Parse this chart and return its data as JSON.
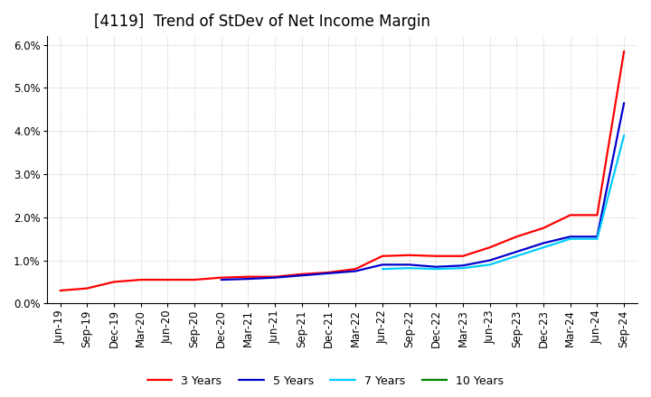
{
  "title": "[4119]  Trend of StDev of Net Income Margin",
  "ylim": [
    0.0,
    0.062
  ],
  "yticks": [
    0.0,
    0.01,
    0.02,
    0.03,
    0.04,
    0.05,
    0.06
  ],
  "x_labels": [
    "Jun-19",
    "Sep-19",
    "Dec-19",
    "Mar-20",
    "Jun-20",
    "Sep-20",
    "Dec-20",
    "Mar-21",
    "Jun-21",
    "Sep-21",
    "Dec-21",
    "Mar-22",
    "Jun-22",
    "Sep-22",
    "Dec-22",
    "Mar-23",
    "Jun-23",
    "Sep-23",
    "Dec-23",
    "Mar-24",
    "Jun-24",
    "Sep-24"
  ],
  "series": {
    "3 Years": {
      "color": "#ff0000",
      "values": [
        0.003,
        0.0035,
        0.005,
        0.0055,
        0.0055,
        0.0055,
        0.006,
        0.0062,
        0.0062,
        0.0068,
        0.0072,
        0.008,
        0.011,
        0.0112,
        0.011,
        0.011,
        0.013,
        0.0155,
        0.0175,
        0.0205,
        0.0205,
        0.0585
      ]
    },
    "5 Years": {
      "color": "#0000cc",
      "values": [
        null,
        null,
        null,
        null,
        null,
        null,
        0.0055,
        0.0057,
        0.006,
        0.0065,
        0.007,
        0.0075,
        0.009,
        0.009,
        0.0085,
        0.0088,
        0.01,
        0.012,
        0.014,
        0.0155,
        0.0155,
        0.0465
      ]
    },
    "7 Years": {
      "color": "#00ccff",
      "values": [
        null,
        null,
        null,
        null,
        null,
        null,
        null,
        null,
        null,
        null,
        null,
        null,
        0.008,
        0.0082,
        0.008,
        0.0082,
        0.009,
        0.011,
        0.013,
        0.015,
        0.015,
        0.039
      ]
    },
    "10 Years": {
      "color": "#008000",
      "values": [
        null,
        null,
        null,
        null,
        null,
        null,
        null,
        null,
        null,
        null,
        null,
        null,
        null,
        null,
        null,
        null,
        null,
        null,
        null,
        null,
        null,
        null
      ]
    }
  },
  "background_color": "#ffffff",
  "grid_color": "#b0b0b0",
  "title_fontsize": 12,
  "tick_fontsize": 8.5,
  "linewidth": 1.6
}
